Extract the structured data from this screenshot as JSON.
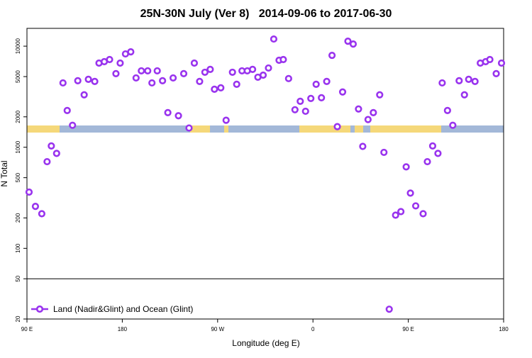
{
  "chart_data": {
    "type": "scatter",
    "title": "25N-30N July (Ver 8)   2014-09-06 to 2017-06-30",
    "xlabel": "Longitude (deg E)",
    "ylabel": "N Total",
    "log_y": true,
    "xlim": [
      90,
      540
    ],
    "ylim": [
      20,
      15000
    ],
    "xticks": [
      {
        "value": 90,
        "label": "90 E"
      },
      180,
      {
        "value": 270,
        "label": "90 W"
      },
      {
        "value": 360,
        "label": "0"
      },
      {
        "value": 450,
        "label": "90 E"
      },
      {
        "value": 540,
        "label": "180"
      }
    ],
    "yticks": [
      20,
      50,
      100,
      200,
      500,
      1000,
      2000,
      5000,
      10000
    ],
    "hline": 50,
    "legend": "lower left",
    "series": [
      {
        "name": "Land (Nadir&Glint) and Ocean (Glint)",
        "color": "#9933ee",
        "x": [
          92,
          98,
          104,
          109,
          113,
          118,
          124,
          128,
          133,
          138,
          144,
          148,
          154,
          158,
          163,
          168,
          174,
          178,
          183,
          188,
          193,
          198,
          204,
          208,
          213,
          218,
          223,
          228,
          233,
          238,
          243,
          248,
          253,
          258,
          263,
          267,
          273,
          278,
          284,
          288,
          293,
          298,
          303,
          308,
          313,
          318,
          323,
          328,
          332,
          337,
          343,
          348,
          353,
          358,
          363,
          368,
          373,
          378,
          383,
          388,
          393,
          398,
          403,
          407,
          412,
          417,
          423,
          427,
          432,
          438,
          443,
          448,
          452,
          457,
          464,
          468,
          473,
          478,
          482,
          487,
          492,
          498,
          503,
          507,
          513,
          518,
          523,
          527,
          533,
          538
        ],
        "values": [
          360,
          260,
          220,
          720,
          1030,
          870,
          4330,
          2310,
          1650,
          4550,
          3300,
          4700,
          4480,
          6800,
          7020,
          7370,
          5350,
          6800,
          8380,
          8790,
          4850,
          5700,
          5700,
          4330,
          5700,
          4550,
          2200,
          4850,
          2050,
          5350,
          1550,
          6800,
          4480,
          5520,
          5890,
          3750,
          3870,
          1850,
          5520,
          4200,
          5700,
          5700,
          5890,
          4930,
          5170,
          6080,
          11760,
          7250,
          7370,
          4780,
          2350,
          2850,
          2270,
          3040,
          4200,
          3090,
          4480,
          8110,
          1600,
          3520,
          11200,
          10500,
          2390,
          1020,
          1880,
          2200,
          3300,
          890,
          25,
          213,
          231,
          640,
          352,
          263,
          220,
          720,
          1030,
          870,
          4330,
          2310,
          1650,
          4550,
          3300,
          4700,
          4480,
          6800,
          7020,
          7370,
          5350,
          6800
        ]
      }
    ]
  }
}
